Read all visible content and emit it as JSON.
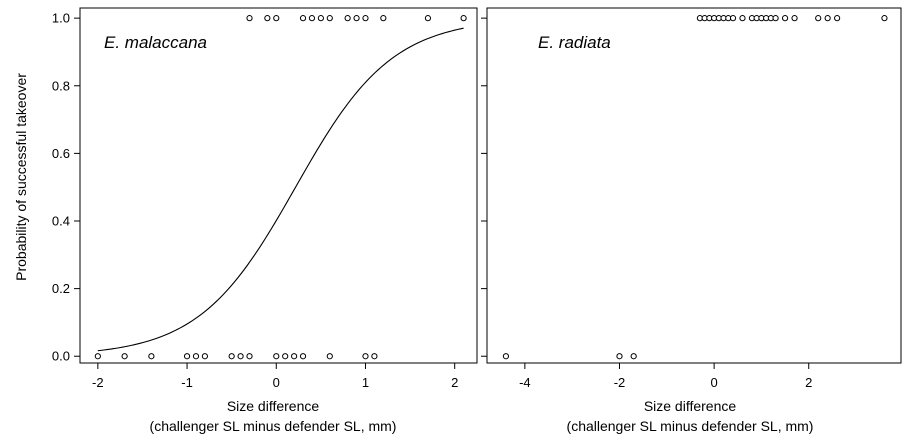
{
  "figure": {
    "ylabel": "Probability of successful takeover",
    "xlabel_line1": "Size difference",
    "xlabel_line2": "(challenger SL minus defender SL, mm)"
  },
  "chart_data": [
    {
      "type": "scatter",
      "title": "E. malaccana",
      "xlabel": "Size difference (challenger SL minus defender SL, mm)",
      "ylabel": "Probability of successful takeover",
      "xlim": [
        -2.2,
        2.25
      ],
      "ylim": [
        -0.02,
        1.03
      ],
      "xticks": [
        -2,
        -1,
        0,
        1,
        2
      ],
      "yticks": [
        0.0,
        0.2,
        0.4,
        0.6,
        0.8,
        1.0
      ],
      "ytick_labels": [
        "0.0",
        "0.2",
        "0.4",
        "0.6",
        "0.8",
        "1.0"
      ],
      "grid": false,
      "points_success": [
        -0.3,
        -0.1,
        0.0,
        0.3,
        0.4,
        0.5,
        0.6,
        0.8,
        0.9,
        1.0,
        1.2,
        1.7,
        2.1
      ],
      "points_failure": [
        -2.0,
        -1.7,
        -1.4,
        -1.0,
        -0.9,
        -0.8,
        -0.5,
        -0.4,
        -0.3,
        0.0,
        0.1,
        0.2,
        0.3,
        0.6,
        1.0,
        1.1
      ],
      "fitted_curve": {
        "model": "logistic",
        "intercept": -0.4,
        "slope": 1.85,
        "x_range": [
          -2.0,
          2.1
        ]
      }
    },
    {
      "type": "scatter",
      "title": "E. radiata",
      "xlabel": "Size difference (challenger SL minus defender SL, mm)",
      "xlim": [
        -4.8,
        3.95
      ],
      "ylim": [
        -0.02,
        1.03
      ],
      "xticks": [
        -4,
        -2,
        0,
        2
      ],
      "yticks": [
        0.0,
        0.2,
        0.4,
        0.6,
        0.8,
        1.0
      ],
      "grid": false,
      "points_success": [
        -0.3,
        -0.2,
        -0.1,
        0.0,
        0.1,
        0.2,
        0.3,
        0.4,
        0.6,
        0.8,
        0.9,
        1.0,
        1.1,
        1.2,
        1.3,
        1.5,
        1.7,
        2.2,
        2.4,
        2.6,
        3.6
      ],
      "points_failure": [
        -4.4,
        -2.0,
        -1.7
      ]
    }
  ]
}
